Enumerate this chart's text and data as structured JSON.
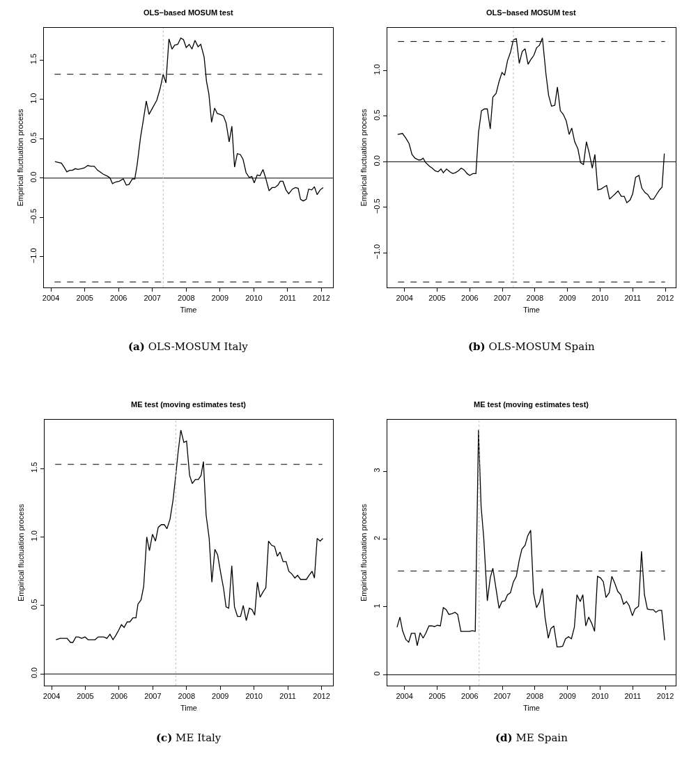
{
  "chart_data": [
    {
      "type": "line",
      "title": "OLS−based MOSUM test",
      "xlabel": "Time",
      "ylabel": "Empirical fluctuation process",
      "annotations": [
        "(a) OLS-MOSUM Italy"
      ],
      "xlim": [
        2003.79,
        2012.34
      ],
      "xticks": [
        2004,
        2005,
        2006,
        2007,
        2008,
        2009,
        2010,
        2011,
        2012
      ],
      "ylim": [
        -1.39,
        1.91
      ],
      "yticks": [
        {
          "value": -1,
          "label": "−1.0"
        },
        {
          "value": -0.5,
          "label": "−0.5"
        },
        {
          "value": 0,
          "label": "0.0"
        },
        {
          "value": 0.5,
          "label": "0.5"
        },
        {
          "value": 1,
          "label": "1.0"
        },
        {
          "value": 1.5,
          "label": "1.5"
        }
      ],
      "ref_lines": [
        {
          "axis": "y",
          "value": 1.32,
          "line_style": "dashed",
          "color": "#000000"
        },
        {
          "axis": "y",
          "value": -1.32,
          "line_style": "dashed",
          "color": "#000000"
        },
        {
          "axis": "y",
          "value": 0,
          "line_style": "solid",
          "color": "#000000"
        },
        {
          "axis": "x",
          "value": 2007.32,
          "line_style": "dotted",
          "color": "#bebebe"
        }
      ],
      "line_style": "solid",
      "x": [
        2004.12,
        2004.22,
        2004.31,
        2004.39,
        2004.47,
        2004.56,
        2004.64,
        2004.72,
        2004.8,
        2004.9,
        2004.99,
        2005.09,
        2005.18,
        2005.28,
        2005.38,
        2005.55,
        2005.69,
        2005.75,
        2005.82,
        2005.91,
        2006.02,
        2006.14,
        2006.23,
        2006.31,
        2006.41,
        2006.48,
        2006.55,
        2006.65,
        2006.73,
        2006.82,
        2006.9,
        2006.99,
        2007.13,
        2007.23,
        2007.32,
        2007.4,
        2007.49,
        2007.58,
        2007.66,
        2007.75,
        2007.84,
        2007.92,
        2008.0,
        2008.09,
        2008.17,
        2008.26,
        2008.35,
        2008.43,
        2008.53,
        2008.6,
        2008.67,
        2008.75,
        2008.84,
        2008.92,
        2009.01,
        2009.1,
        2009.18,
        2009.27,
        2009.35,
        2009.43,
        2009.51,
        2009.6,
        2009.68,
        2009.77,
        2009.86,
        2009.94,
        2010.01,
        2010.1,
        2010.18,
        2010.27,
        2010.35,
        2010.45,
        2010.54,
        2010.62,
        2010.71,
        2010.78,
        2010.86,
        2010.95,
        2011.03,
        2011.14,
        2011.23,
        2011.31,
        2011.38,
        2011.46,
        2011.55,
        2011.62,
        2011.71,
        2011.79,
        2011.87,
        2011.96,
        2012.05
      ],
      "series": [
        {
          "color": "#000000",
          "values": [
            0.21,
            0.2,
            0.19,
            0.14,
            0.08,
            0.1,
            0.1,
            0.12,
            0.11,
            0.12,
            0.13,
            0.16,
            0.15,
            0.15,
            0.1,
            0.05,
            0.02,
            0.0,
            -0.07,
            -0.05,
            -0.04,
            -0.01,
            -0.09,
            -0.08,
            -0.01,
            -0.01,
            0.17,
            0.52,
            0.73,
            0.98,
            0.81,
            0.88,
            0.99,
            1.14,
            1.32,
            1.21,
            1.77,
            1.64,
            1.69,
            1.7,
            1.78,
            1.76,
            1.66,
            1.7,
            1.64,
            1.75,
            1.67,
            1.7,
            1.54,
            1.23,
            1.07,
            0.71,
            0.89,
            0.82,
            0.81,
            0.79,
            0.7,
            0.46,
            0.66,
            0.14,
            0.31,
            0.3,
            0.24,
            0.07,
            0.01,
            0.02,
            -0.06,
            0.04,
            0.03,
            0.11,
            0.0,
            -0.16,
            -0.12,
            -0.12,
            -0.09,
            -0.04,
            -0.04,
            -0.15,
            -0.2,
            -0.14,
            -0.12,
            -0.13,
            -0.27,
            -0.29,
            -0.27,
            -0.14,
            -0.15,
            -0.11,
            -0.21,
            -0.15,
            -0.12
          ]
        }
      ]
    },
    {
      "type": "line",
      "title": "OLS−based MOSUM test",
      "xlabel": "Time",
      "ylabel": "Empirical fluctuation process",
      "annotations": [
        "(b) OLS-MOSUM Spain"
      ],
      "xlim": [
        2003.47,
        2012.32
      ],
      "xticks": [
        2004,
        2005,
        2006,
        2007,
        2008,
        2009,
        2010,
        2011,
        2012
      ],
      "ylim": [
        -1.38,
        1.47
      ],
      "yticks": [
        {
          "value": -1,
          "label": "−1.0"
        },
        {
          "value": -0.5,
          "label": "−0.5"
        },
        {
          "value": 0,
          "label": "0.0"
        },
        {
          "value": 0.5,
          "label": "0.5"
        },
        {
          "value": 1,
          "label": "1.0"
        }
      ],
      "ref_lines": [
        {
          "axis": "y",
          "value": 1.32,
          "line_style": "dashed",
          "color": "#000000"
        },
        {
          "axis": "y",
          "value": -1.32,
          "line_style": "dashed",
          "color": "#000000"
        },
        {
          "axis": "y",
          "value": 0,
          "line_style": "solid",
          "color": "#000000"
        },
        {
          "axis": "x",
          "value": 2007.34,
          "line_style": "dotted",
          "color": "#bebebe"
        }
      ],
      "line_style": "solid",
      "x": [
        2003.79,
        2003.94,
        2004.04,
        2004.14,
        2004.23,
        2004.32,
        2004.43,
        2004.5,
        2004.57,
        2004.65,
        2004.77,
        2004.85,
        2004.94,
        2005.03,
        2005.12,
        2005.19,
        2005.29,
        2005.39,
        2005.48,
        2005.56,
        2005.65,
        2005.74,
        2005.83,
        2005.92,
        2006.0,
        2006.1,
        2006.19,
        2006.27,
        2006.36,
        2006.45,
        2006.54,
        2006.63,
        2006.71,
        2006.81,
        2006.9,
        2006.99,
        2007.07,
        2007.16,
        2007.25,
        2007.34,
        2007.43,
        2007.52,
        2007.61,
        2007.7,
        2007.79,
        2007.87,
        2007.97,
        2008.05,
        2008.14,
        2008.23,
        2008.34,
        2008.42,
        2008.51,
        2008.61,
        2008.69,
        2008.78,
        2008.87,
        2008.96,
        2009.05,
        2009.13,
        2009.22,
        2009.32,
        2009.4,
        2009.49,
        2009.58,
        2009.67,
        2009.76,
        2009.84,
        2009.93,
        2010.03,
        2010.11,
        2010.2,
        2010.29,
        2010.38,
        2010.47,
        2010.55,
        2010.65,
        2010.74,
        2010.82,
        2010.92,
        2011.0,
        2011.09,
        2011.19,
        2011.28,
        2011.38,
        2011.46,
        2011.55,
        2011.64,
        2011.73,
        2011.82,
        2011.9,
        2011.97
      ],
      "series": [
        {
          "color": "#000000",
          "values": [
            0.3,
            0.31,
            0.26,
            0.2,
            0.08,
            0.04,
            0.02,
            0.02,
            0.04,
            -0.01,
            -0.05,
            -0.07,
            -0.1,
            -0.11,
            -0.08,
            -0.12,
            -0.08,
            -0.11,
            -0.13,
            -0.12,
            -0.1,
            -0.07,
            -0.09,
            -0.13,
            -0.15,
            -0.13,
            -0.13,
            0.32,
            0.56,
            0.58,
            0.58,
            0.36,
            0.71,
            0.75,
            0.88,
            0.98,
            0.95,
            1.11,
            1.2,
            1.34,
            1.35,
            1.08,
            1.21,
            1.24,
            1.07,
            1.12,
            1.17,
            1.25,
            1.28,
            1.36,
            0.96,
            0.73,
            0.61,
            0.62,
            0.82,
            0.56,
            0.52,
            0.45,
            0.3,
            0.37,
            0.22,
            0.14,
            -0.01,
            -0.03,
            0.22,
            0.09,
            -0.07,
            0.08,
            -0.31,
            -0.3,
            -0.28,
            -0.26,
            -0.41,
            -0.38,
            -0.35,
            -0.32,
            -0.38,
            -0.38,
            -0.45,
            -0.42,
            -0.35,
            -0.17,
            -0.15,
            -0.29,
            -0.34,
            -0.36,
            -0.41,
            -0.41,
            -0.36,
            -0.31,
            -0.28,
            0.09
          ]
        }
      ]
    },
    {
      "type": "line",
      "title": "ME test (moving estimates test)",
      "xlabel": "Time",
      "ylabel": "Empirical fluctuation process",
      "annotations": [
        "(c) ME Italy"
      ],
      "xlim": [
        2003.79,
        2012.34
      ],
      "xticks": [
        2004,
        2005,
        2006,
        2007,
        2008,
        2009,
        2010,
        2011,
        2012
      ],
      "ylim": [
        -0.085,
        1.856
      ],
      "yticks": [
        {
          "value": 0,
          "label": "0.0"
        },
        {
          "value": 0.5,
          "label": "0.5"
        },
        {
          "value": 1,
          "label": "1.0"
        },
        {
          "value": 1.5,
          "label": "1.5"
        }
      ],
      "ref_lines": [
        {
          "axis": "y",
          "value": 1.53,
          "line_style": "dashed",
          "color": "#000000"
        },
        {
          "axis": "y",
          "value": 0,
          "line_style": "solid",
          "color": "#000000"
        },
        {
          "axis": "x",
          "value": 2007.68,
          "line_style": "dotted",
          "color": "#bebebe"
        }
      ],
      "line_style": "solid",
      "x": [
        2004.13,
        2004.25,
        2004.36,
        2004.46,
        2004.56,
        2004.63,
        2004.72,
        2004.8,
        2004.89,
        2004.99,
        2005.08,
        2005.18,
        2005.29,
        2005.38,
        2005.47,
        2005.55,
        2005.64,
        2005.73,
        2005.82,
        2005.9,
        2005.99,
        2006.07,
        2006.15,
        2006.24,
        2006.32,
        2006.41,
        2006.5,
        2006.56,
        2006.65,
        2006.73,
        2006.82,
        2006.9,
        2006.99,
        2007.08,
        2007.16,
        2007.25,
        2007.34,
        2007.42,
        2007.51,
        2007.6,
        2007.68,
        2007.75,
        2007.83,
        2007.92,
        2008.0,
        2008.09,
        2008.17,
        2008.26,
        2008.35,
        2008.43,
        2008.5,
        2008.58,
        2008.67,
        2008.75,
        2008.84,
        2008.92,
        2009.01,
        2009.1,
        2009.17,
        2009.25,
        2009.34,
        2009.42,
        2009.51,
        2009.6,
        2009.68,
        2009.77,
        2009.86,
        2009.94,
        2010.02,
        2010.1,
        2010.18,
        2010.27,
        2010.35,
        2010.43,
        2010.52,
        2010.61,
        2010.69,
        2010.77,
        2010.86,
        2010.95,
        2011.03,
        2011.12,
        2011.21,
        2011.29,
        2011.38,
        2011.46,
        2011.55,
        2011.63,
        2011.72,
        2011.79,
        2011.87,
        2011.96,
        2012.04
      ],
      "series": [
        {
          "color": "#000000",
          "values": [
            0.25,
            0.26,
            0.26,
            0.26,
            0.23,
            0.23,
            0.27,
            0.27,
            0.26,
            0.27,
            0.25,
            0.25,
            0.25,
            0.27,
            0.27,
            0.27,
            0.26,
            0.29,
            0.25,
            0.28,
            0.32,
            0.36,
            0.34,
            0.38,
            0.38,
            0.41,
            0.41,
            0.51,
            0.54,
            0.64,
            1.0,
            0.9,
            1.02,
            0.97,
            1.07,
            1.09,
            1.09,
            1.06,
            1.13,
            1.27,
            1.45,
            1.62,
            1.78,
            1.69,
            1.7,
            1.45,
            1.39,
            1.42,
            1.42,
            1.45,
            1.55,
            1.16,
            0.99,
            0.67,
            0.91,
            0.87,
            0.74,
            0.62,
            0.49,
            0.48,
            0.79,
            0.49,
            0.42,
            0.42,
            0.5,
            0.39,
            0.48,
            0.47,
            0.43,
            0.67,
            0.56,
            0.6,
            0.63,
            0.97,
            0.94,
            0.93,
            0.86,
            0.89,
            0.82,
            0.82,
            0.75,
            0.73,
            0.7,
            0.72,
            0.69,
            0.69,
            0.69,
            0.72,
            0.75,
            0.7,
            0.99,
            0.97,
            0.99
          ]
        }
      ]
    },
    {
      "type": "line",
      "title": "ME test (moving estimates test)",
      "xlabel": "Time",
      "ylabel": "Empirical fluctuation process",
      "annotations": [
        "(d) ME Spain"
      ],
      "xlim": [
        2003.47,
        2012.32
      ],
      "xticks": [
        2004,
        2005,
        2006,
        2007,
        2008,
        2009,
        2010,
        2011,
        2012
      ],
      "ylim": [
        -0.16,
        3.76
      ],
      "yticks": [
        0,
        1,
        2,
        3
      ],
      "ref_lines": [
        {
          "axis": "y",
          "value": 1.53,
          "line_style": "dashed",
          "color": "#000000"
        },
        {
          "axis": "y",
          "value": 0,
          "line_style": "solid",
          "color": "#000000"
        },
        {
          "axis": "x",
          "value": 2006.29,
          "line_style": "dotted",
          "color": "#bebebe"
        }
      ],
      "line_style": "solid",
      "x": [
        2003.77,
        2003.86,
        2003.94,
        2004.04,
        2004.13,
        2004.21,
        2004.32,
        2004.39,
        2004.48,
        2004.57,
        2004.65,
        2004.75,
        2004.84,
        2004.92,
        2005.01,
        2005.1,
        2005.19,
        2005.28,
        2005.36,
        2005.46,
        2005.55,
        2005.63,
        2005.73,
        2005.81,
        2005.9,
        2005.99,
        2006.08,
        2006.17,
        2006.27,
        2006.35,
        2006.43,
        2006.54,
        2006.63,
        2006.71,
        2006.81,
        2006.9,
        2006.99,
        2007.08,
        2007.16,
        2007.25,
        2007.34,
        2007.43,
        2007.52,
        2007.6,
        2007.7,
        2007.78,
        2007.87,
        2007.96,
        2008.05,
        2008.14,
        2008.23,
        2008.31,
        2008.41,
        2008.49,
        2008.58,
        2008.68,
        2008.76,
        2008.85,
        2008.94,
        2009.03,
        2009.12,
        2009.21,
        2009.29,
        2009.39,
        2009.47,
        2009.56,
        2009.65,
        2009.74,
        2009.83,
        2009.92,
        2010.01,
        2010.1,
        2010.18,
        2010.28,
        2010.36,
        2010.45,
        2010.54,
        2010.63,
        2010.72,
        2010.81,
        2010.89,
        2010.99,
        2011.07,
        2011.18,
        2011.27,
        2011.36,
        2011.45,
        2011.53,
        2011.63,
        2011.71,
        2011.8,
        2011.89,
        2011.98
      ],
      "series": [
        {
          "color": "#000000",
          "values": [
            0.7,
            0.85,
            0.65,
            0.52,
            0.48,
            0.61,
            0.61,
            0.43,
            0.62,
            0.54,
            0.61,
            0.72,
            0.72,
            0.71,
            0.73,
            0.72,
            0.99,
            0.96,
            0.89,
            0.9,
            0.92,
            0.89,
            0.64,
            0.64,
            0.64,
            0.64,
            0.65,
            0.64,
            3.61,
            2.48,
            2.02,
            1.09,
            1.43,
            1.57,
            1.26,
            0.98,
            1.08,
            1.09,
            1.18,
            1.21,
            1.37,
            1.45,
            1.69,
            1.85,
            1.91,
            2.05,
            2.13,
            1.2,
            0.99,
            1.07,
            1.27,
            0.85,
            0.54,
            0.68,
            0.72,
            0.41,
            0.41,
            0.42,
            0.53,
            0.56,
            0.53,
            0.7,
            1.18,
            1.08,
            1.18,
            0.72,
            0.85,
            0.76,
            0.64,
            1.45,
            1.43,
            1.37,
            1.14,
            1.21,
            1.45,
            1.35,
            1.23,
            1.18,
            1.04,
            1.08,
            1.02,
            0.87,
            0.97,
            1.01,
            1.82,
            1.18,
            0.97,
            0.96,
            0.96,
            0.92,
            0.95,
            0.95,
            0.51
          ]
        }
      ]
    }
  ]
}
